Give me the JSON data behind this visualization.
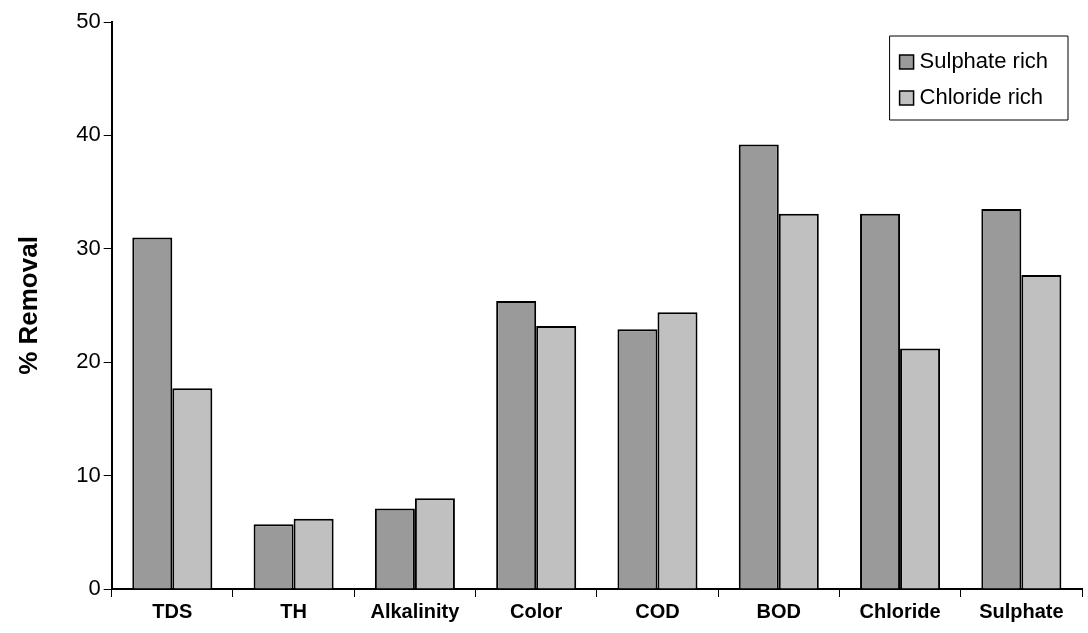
{
  "chart_data": {
    "type": "bar",
    "ylabel": "% Removal",
    "categories": [
      "TDS",
      "TH",
      "Alkalinity",
      "Color",
      "COD",
      "BOD",
      "Chloride",
      "Sulphate"
    ],
    "series": [
      {
        "name": "Sulphate rich",
        "color": "#9a9a9a",
        "values": [
          31.0,
          5.7,
          7.1,
          25.4,
          22.9,
          39.2,
          33.1,
          33.5
        ]
      },
      {
        "name": "Chloride rich",
        "color": "#c0c0c0",
        "values": [
          17.7,
          6.2,
          8.0,
          23.2,
          24.4,
          33.1,
          21.2,
          27.7
        ]
      }
    ],
    "ylim": [
      0,
      50
    ],
    "yticks": [
      0,
      10,
      20,
      30,
      40,
      50
    ],
    "grid": false,
    "legend": "top right"
  }
}
